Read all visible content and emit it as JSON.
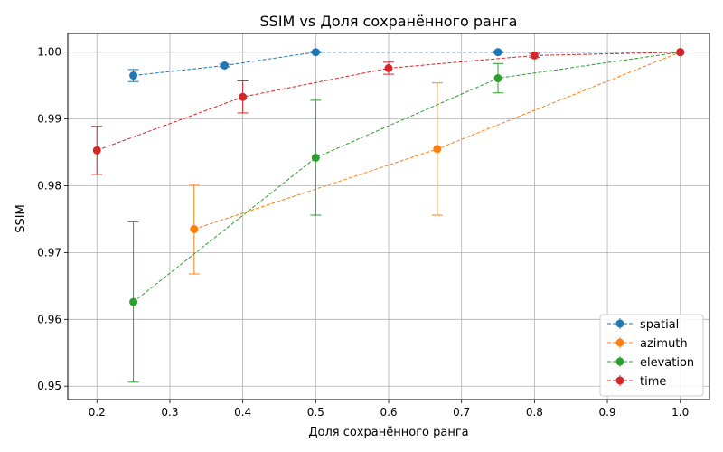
{
  "chart_data": {
    "type": "line",
    "title": "SSIM vs Доля сохранённого ранга",
    "xlabel": "Доля сохранённого ранга",
    "ylabel": "SSIM",
    "xlim": [
      0.16,
      1.04
    ],
    "ylim": [
      0.948,
      1.0028
    ],
    "xticks": [
      0.2,
      0.3,
      0.4,
      0.5,
      0.6,
      0.7,
      0.8,
      0.9,
      1.0
    ],
    "xtick_labels": [
      "0.2",
      "0.3",
      "0.4",
      "0.5",
      "0.6",
      "0.7",
      "0.8",
      "0.9",
      "1.0"
    ],
    "yticks": [
      0.95,
      0.96,
      0.97,
      0.98,
      0.99,
      1.0
    ],
    "ytick_labels": [
      "0.95",
      "0.96",
      "0.97",
      "0.98",
      "0.99",
      "1.00"
    ],
    "grid": true,
    "legend_position": "bottom-right",
    "series": [
      {
        "name": "spatial",
        "color": "#1f77b4",
        "x": [
          0.25,
          0.375,
          0.5,
          0.75,
          1.0
        ],
        "y": [
          0.9965,
          0.998,
          1.0,
          1.0,
          1.0
        ],
        "yerr": [
          0.0009,
          0.0002,
          0.0001,
          0.0001,
          0.0
        ]
      },
      {
        "name": "azimuth",
        "color": "#ff7f0e",
        "x": [
          0.3333,
          0.6667,
          1.0
        ],
        "y": [
          0.9735,
          0.9855,
          1.0
        ],
        "yerr": [
          0.0067,
          0.0099,
          0.0
        ]
      },
      {
        "name": "elevation",
        "color": "#2ca02c",
        "x": [
          0.25,
          0.5,
          0.75,
          1.0
        ],
        "y": [
          0.9626,
          0.9842,
          0.9961,
          1.0
        ],
        "yerr": [
          0.012,
          0.0086,
          0.0022,
          0.0
        ]
      },
      {
        "name": "time",
        "color": "#d62728",
        "x": [
          0.2,
          0.4,
          0.6,
          0.8,
          1.0
        ],
        "y": [
          0.9853,
          0.9933,
          0.9976,
          0.9995,
          1.0
        ],
        "yerr": [
          0.0036,
          0.0024,
          0.0009,
          0.0003,
          0.0
        ]
      }
    ]
  }
}
